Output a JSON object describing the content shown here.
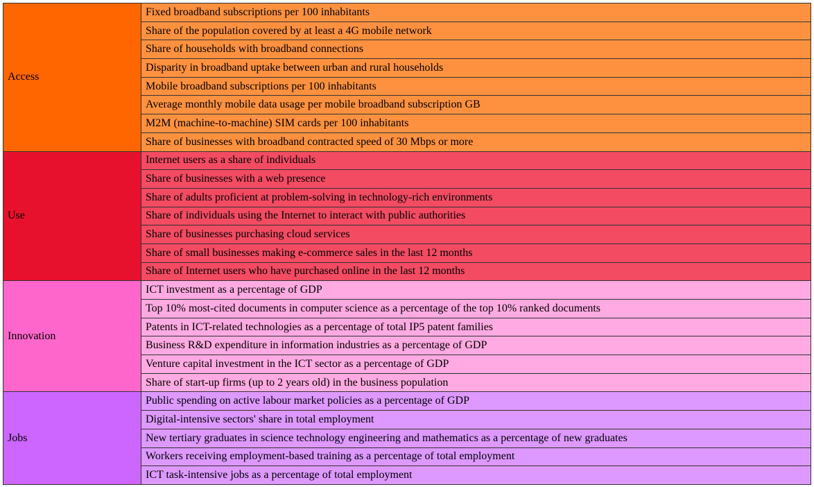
{
  "table": {
    "groups": [
      {
        "name": "Access",
        "items": [
          "Fixed broadband subscriptions per 100 inhabitants",
          "Share of the population covered by at least a 4G mobile network",
          "Share of households with broadband connections",
          "Disparity in broadband uptake between urban and rural households",
          "Mobile broadband subscriptions per 100 inhabitants",
          "Average monthly mobile data usage per mobile broadband subscription GB",
          "M2M (machine-to-machine) SIM cards per 100 inhabitants",
          "Share of businesses with broadband contracted speed of 30 Mbps or more"
        ]
      },
      {
        "name": "Use",
        "items": [
          "Internet users as a share of individuals",
          "Share of businesses with a web presence",
          "Share of adults proficient at problem-solving in technology-rich environments",
          "Share of individuals using the Internet to interact with public authorities",
          "Share of businesses purchasing cloud services",
          "Share of small businesses making e-commerce sales in the last 12 months",
          "Share of Internet users who have purchased online in the last 12 months"
        ]
      },
      {
        "name": "Innovation",
        "items": [
          "ICT investment as a percentage of GDP",
          "Top 10% most-cited documents in computer science as a percentage of the top 10% ranked documents",
          "Patents in ICT-related technologies as a percentage of total IP5 patent families",
          "Business R&D expenditure in information industries as a percentage of GDP",
          "Venture capital investment in the ICT sector as a percentage of GDP",
          "Share of start-up firms (up to 2 years old) in the business population"
        ]
      },
      {
        "name": "Jobs",
        "items": [
          "Public spending on active labour market policies as a percentage of GDP",
          "Digital-intensive sectors' share in total employment",
          "New tertiary graduates in science technology engineering and mathematics as a percentage of new graduates",
          "Workers receiving employment-based training as a percentage of total employment",
          "ICT task-intensive jobs as a percentage of total employment"
        ]
      }
    ]
  }
}
